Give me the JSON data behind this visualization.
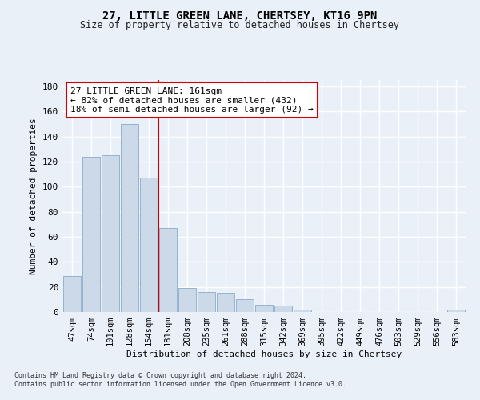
{
  "title": "27, LITTLE GREEN LANE, CHERTSEY, KT16 9PN",
  "subtitle": "Size of property relative to detached houses in Chertsey",
  "xlabel": "Distribution of detached houses by size in Chertsey",
  "ylabel": "Number of detached properties",
  "categories": [
    "47sqm",
    "74sqm",
    "101sqm",
    "128sqm",
    "154sqm",
    "181sqm",
    "208sqm",
    "235sqm",
    "261sqm",
    "288sqm",
    "315sqm",
    "342sqm",
    "369sqm",
    "395sqm",
    "422sqm",
    "449sqm",
    "476sqm",
    "503sqm",
    "529sqm",
    "556sqm",
    "583sqm"
  ],
  "values": [
    29,
    124,
    125,
    150,
    107,
    67,
    19,
    16,
    15,
    10,
    6,
    5,
    2,
    0,
    0,
    0,
    0,
    0,
    0,
    0,
    2
  ],
  "bar_color": "#ccd9e8",
  "bar_edge_color": "#7a9fc0",
  "vline_x": 4.5,
  "vline_color": "#cc0000",
  "annotation_text": "27 LITTLE GREEN LANE: 161sqm\n← 82% of detached houses are smaller (432)\n18% of semi-detached houses are larger (92) →",
  "annotation_box_color": "#cc0000",
  "ylim": [
    0,
    185
  ],
  "yticks": [
    0,
    20,
    40,
    60,
    80,
    100,
    120,
    140,
    160,
    180
  ],
  "bg_color": "#eaf0f8",
  "plot_bg_color": "#eaf0f8",
  "grid_color": "#ffffff",
  "footer_line1": "Contains HM Land Registry data © Crown copyright and database right 2024.",
  "footer_line2": "Contains public sector information licensed under the Open Government Licence v3.0."
}
